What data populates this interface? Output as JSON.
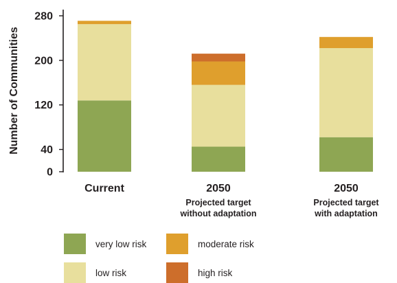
{
  "chart_data": {
    "type": "bar",
    "stacked": true,
    "ylabel": "Number of Communities",
    "ylim": [
      0,
      280
    ],
    "yticks": [
      0,
      40,
      120,
      200,
      280
    ],
    "categories": [
      {
        "main": "Current",
        "sub": []
      },
      {
        "main": "2050",
        "sub": [
          "Projected target",
          "without adaptation"
        ]
      },
      {
        "main": "2050",
        "sub": [
          "Projected target",
          "with adaptation"
        ]
      }
    ],
    "series": [
      {
        "name": "very low risk",
        "color": "#8ea653",
        "values": [
          128,
          45,
          62
        ]
      },
      {
        "name": "low risk",
        "color": "#e8df9d",
        "values": [
          137,
          111,
          160
        ]
      },
      {
        "name": "moderate risk",
        "color": "#df9f2d",
        "values": [
          6,
          42,
          20
        ]
      },
      {
        "name": "high risk",
        "color": "#cd6e2b",
        "values": [
          0,
          14,
          0
        ]
      }
    ],
    "legend": "bottom"
  }
}
